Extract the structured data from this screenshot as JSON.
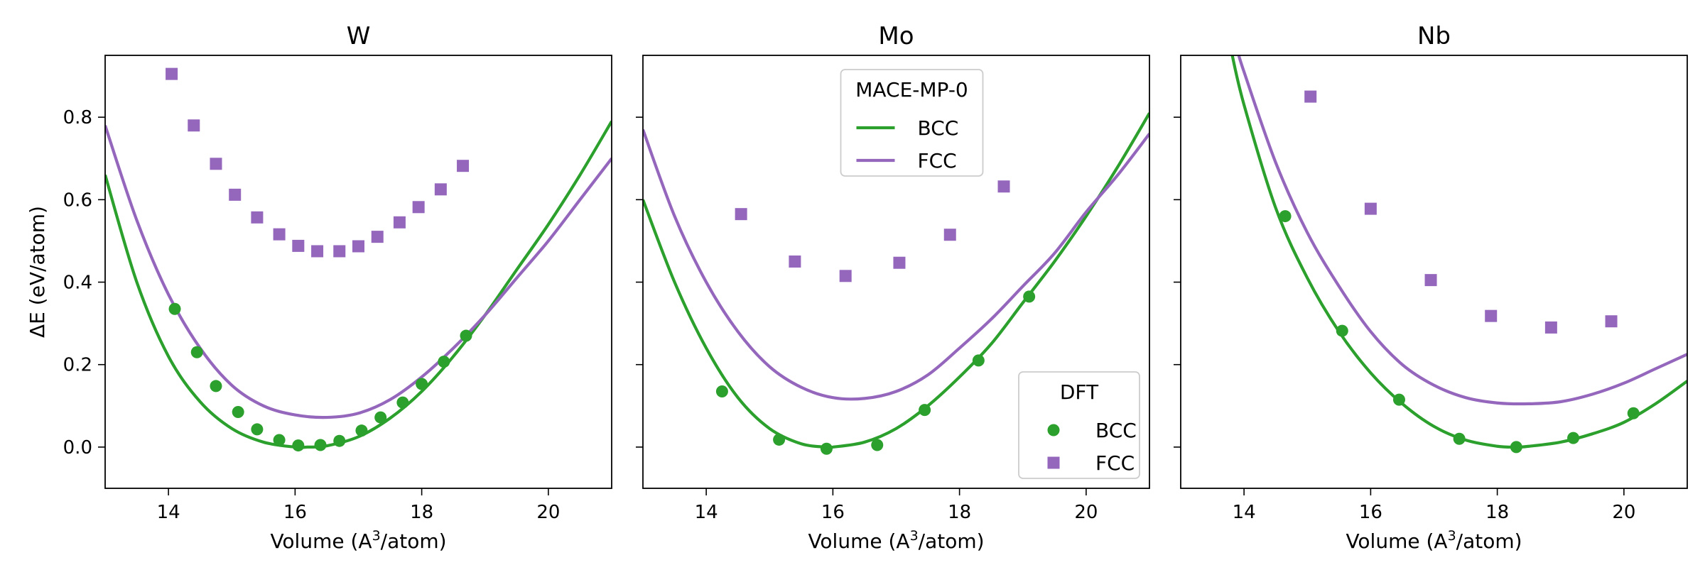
{
  "chart_data": [
    {
      "type": "scatter",
      "title": "W",
      "xlabel": "Volume (A",
      "xlabel_sup": "3",
      "xlabel_after": "/atom)",
      "ylabel": "ΔE (eV/atom)",
      "xlim": [
        13,
        21
      ],
      "ylim": [
        -0.1,
        0.95
      ],
      "xticks": [
        14,
        16,
        18,
        20
      ],
      "yticks": [
        0.0,
        0.2,
        0.4,
        0.6,
        0.8
      ],
      "ytick_labels": [
        "0.0",
        "0.2",
        "0.4",
        "0.6",
        "0.8"
      ],
      "grid": false,
      "series": [
        {
          "name": "BCC",
          "group": "MACE-MP-0",
          "kind": "line",
          "color": "#2ca02c",
          "x": [
            13.0,
            13.5,
            14.0,
            14.5,
            15.0,
            15.5,
            16.0,
            16.2,
            16.5,
            17.0,
            17.5,
            18.0,
            18.5,
            19.0,
            19.5,
            20.0,
            20.5,
            21.0
          ],
          "y": [
            0.66,
            0.4,
            0.22,
            0.11,
            0.045,
            0.012,
            0.0,
            0.0,
            0.003,
            0.025,
            0.07,
            0.135,
            0.22,
            0.32,
            0.43,
            0.54,
            0.66,
            0.79
          ]
        },
        {
          "name": "FCC",
          "group": "MACE-MP-0",
          "kind": "line",
          "color": "#9467bd",
          "x": [
            13.0,
            13.5,
            14.0,
            14.5,
            15.0,
            15.5,
            16.0,
            16.5,
            17.0,
            17.5,
            18.0,
            18.5,
            19.0,
            19.5,
            20.0,
            20.5,
            21.0
          ],
          "y": [
            0.78,
            0.55,
            0.37,
            0.24,
            0.15,
            0.1,
            0.078,
            0.072,
            0.082,
            0.115,
            0.17,
            0.24,
            0.32,
            0.41,
            0.5,
            0.6,
            0.7
          ]
        },
        {
          "name": "BCC",
          "group": "DFT",
          "kind": "points",
          "marker": "circle",
          "color": "#2ca02c",
          "x": [
            14.1,
            14.45,
            14.75,
            15.1,
            15.4,
            15.75,
            16.05,
            16.4,
            16.7,
            17.05,
            17.35,
            17.7,
            18.0,
            18.35,
            18.7
          ],
          "y": [
            0.335,
            0.23,
            0.148,
            0.085,
            0.043,
            0.017,
            0.004,
            0.005,
            0.015,
            0.04,
            0.072,
            0.108,
            0.153,
            0.207,
            0.27
          ]
        },
        {
          "name": "FCC",
          "group": "DFT",
          "kind": "points",
          "marker": "square",
          "color": "#9467bd",
          "x": [
            14.05,
            14.4,
            14.75,
            15.05,
            15.4,
            15.75,
            16.05,
            16.35,
            16.7,
            17.0,
            17.3,
            17.65,
            17.95,
            18.3,
            18.65
          ],
          "y": [
            0.905,
            0.78,
            0.687,
            0.612,
            0.557,
            0.516,
            0.488,
            0.475,
            0.475,
            0.487,
            0.51,
            0.545,
            0.582,
            0.625,
            0.682
          ]
        }
      ],
      "legends": []
    },
    {
      "type": "scatter",
      "title": "Mo",
      "xlabel": "Volume (A",
      "xlabel_sup": "3",
      "xlabel_after": "/atom)",
      "ylabel": "",
      "xlim": [
        13,
        21
      ],
      "ylim": [
        -0.1,
        0.95
      ],
      "xticks": [
        14,
        16,
        18,
        20
      ],
      "yticks": [
        0.0,
        0.2,
        0.4,
        0.6,
        0.8
      ],
      "ytick_labels": [],
      "grid": false,
      "series": [
        {
          "name": "BCC",
          "group": "MACE-MP-0",
          "kind": "line",
          "color": "#2ca02c",
          "x": [
            13.0,
            13.5,
            14.0,
            14.5,
            15.0,
            15.5,
            15.9,
            16.0,
            16.5,
            17.0,
            17.5,
            18.0,
            18.5,
            19.0,
            19.5,
            20.0,
            20.5,
            21.0
          ],
          "y": [
            0.6,
            0.4,
            0.24,
            0.12,
            0.045,
            0.008,
            0.0,
            0.0,
            0.012,
            0.045,
            0.1,
            0.17,
            0.25,
            0.35,
            0.45,
            0.56,
            0.68,
            0.81
          ]
        },
        {
          "name": "FCC",
          "group": "MACE-MP-0",
          "kind": "line",
          "color": "#9467bd",
          "x": [
            13.0,
            13.5,
            14.0,
            14.5,
            15.0,
            15.5,
            16.0,
            16.5,
            17.0,
            17.5,
            18.0,
            18.5,
            19.0,
            19.5,
            20.0,
            20.5,
            21.0
          ],
          "y": [
            0.77,
            0.56,
            0.4,
            0.28,
            0.195,
            0.145,
            0.12,
            0.118,
            0.135,
            0.175,
            0.24,
            0.31,
            0.39,
            0.47,
            0.57,
            0.66,
            0.76
          ]
        },
        {
          "name": "BCC",
          "group": "DFT",
          "kind": "points",
          "marker": "circle",
          "color": "#2ca02c",
          "x": [
            14.25,
            15.15,
            15.9,
            16.7,
            17.45,
            18.3,
            19.1
          ],
          "y": [
            0.135,
            0.018,
            -0.004,
            0.005,
            0.09,
            0.21,
            0.365
          ]
        },
        {
          "name": "FCC",
          "group": "DFT",
          "kind": "points",
          "marker": "square",
          "color": "#9467bd",
          "x": [
            14.55,
            15.4,
            16.2,
            17.05,
            17.85,
            18.7
          ],
          "y": [
            0.565,
            0.45,
            0.415,
            0.447,
            0.515,
            0.632
          ]
        }
      ],
      "legends": [
        {
          "title": "MACE-MP-0",
          "placement": "top-center",
          "entries": [
            {
              "label": "BCC",
              "color": "#2ca02c",
              "kind": "line"
            },
            {
              "label": "FCC",
              "color": "#9467bd",
              "kind": "line"
            }
          ]
        },
        {
          "title": "DFT",
          "placement": "lower-right",
          "entries": [
            {
              "label": "BCC",
              "color": "#2ca02c",
              "kind": "circle"
            },
            {
              "label": "FCC",
              "color": "#9467bd",
              "kind": "square"
            }
          ]
        }
      ]
    },
    {
      "type": "scatter",
      "title": "Nb",
      "xlabel": "Volume (A",
      "xlabel_sup": "3",
      "xlabel_after": "/atom)",
      "ylabel": "",
      "xlim": [
        13,
        21
      ],
      "ylim": [
        -0.1,
        0.95
      ],
      "xticks": [
        14,
        16,
        18,
        20
      ],
      "yticks": [
        0.0,
        0.2,
        0.4,
        0.6,
        0.8
      ],
      "ytick_labels": [],
      "grid": false,
      "series": [
        {
          "name": "BCC",
          "group": "MACE-MP-0",
          "kind": "line",
          "color": "#2ca02c",
          "x": [
            13.8,
            14.0,
            14.5,
            15.0,
            15.5,
            16.0,
            16.5,
            17.0,
            17.5,
            18.0,
            18.3,
            18.5,
            19.0,
            19.5,
            20.0,
            20.5,
            21.0
          ],
          "y": [
            0.96,
            0.83,
            0.58,
            0.41,
            0.28,
            0.18,
            0.105,
            0.05,
            0.017,
            0.002,
            0.0,
            0.002,
            0.012,
            0.032,
            0.06,
            0.105,
            0.16
          ]
        },
        {
          "name": "FCC",
          "group": "MACE-MP-0",
          "kind": "line",
          "color": "#9467bd",
          "x": [
            13.9,
            14.0,
            14.5,
            15.0,
            15.5,
            16.0,
            16.5,
            17.0,
            17.5,
            18.0,
            18.5,
            19.0,
            19.5,
            20.0,
            20.5,
            21.0
          ],
          "y": [
            0.96,
            0.91,
            0.69,
            0.52,
            0.39,
            0.28,
            0.2,
            0.15,
            0.12,
            0.107,
            0.105,
            0.11,
            0.128,
            0.155,
            0.19,
            0.225
          ]
        },
        {
          "name": "BCC",
          "group": "DFT",
          "kind": "points",
          "marker": "circle",
          "color": "#2ca02c",
          "x": [
            14.65,
            15.55,
            16.45,
            17.4,
            18.3,
            19.2,
            20.15
          ],
          "y": [
            0.56,
            0.282,
            0.115,
            0.02,
            0.0,
            0.022,
            0.082
          ]
        },
        {
          "name": "FCC",
          "group": "DFT",
          "kind": "points",
          "marker": "square",
          "color": "#9467bd",
          "x": [
            15.05,
            16.0,
            16.95,
            17.9,
            18.85,
            19.8
          ],
          "y": [
            0.85,
            0.578,
            0.405,
            0.318,
            0.29,
            0.305
          ]
        }
      ],
      "legends": []
    }
  ]
}
